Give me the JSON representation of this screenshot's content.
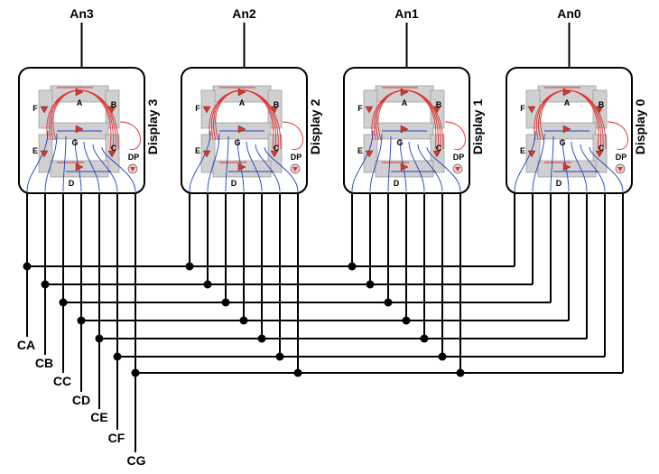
{
  "anodes": [
    "An3",
    "An2",
    "An1",
    "An0"
  ],
  "displays": [
    "Display 3",
    "Display 2",
    "Display 1",
    "Display 0"
  ],
  "cathodes": [
    "CA",
    "CB",
    "CC",
    "CD",
    "CE",
    "CF",
    "CG"
  ],
  "segment_letters": [
    "A",
    "B",
    "C",
    "D",
    "E",
    "F",
    "G",
    "DP"
  ],
  "colors": {
    "wire": "#000000",
    "anode_trace": "#e03030",
    "cathode_trace": "#2040c0",
    "segment_fill": "#d0d0d0",
    "led": "#d03a2a"
  }
}
